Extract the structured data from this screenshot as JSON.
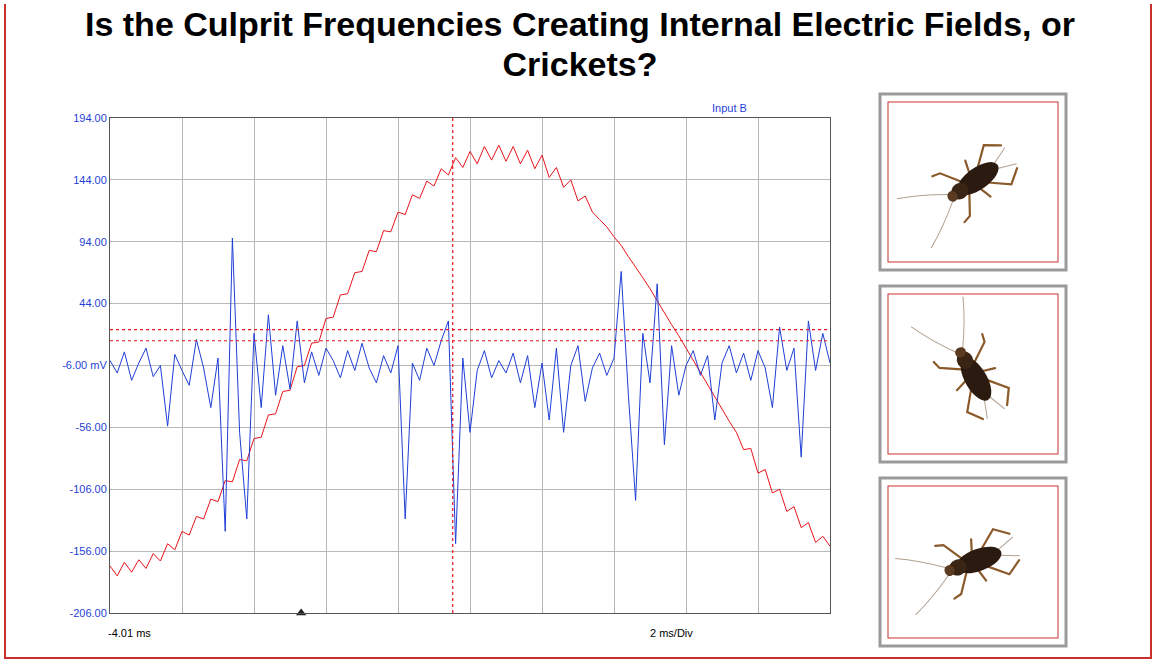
{
  "chart_data": {
    "type": "line",
    "title": "Is the Culprit Frequencies Creating Internal Electric Fields, or Crickets?",
    "input_label": "Input B",
    "x_start_label": "-4.01 ms",
    "x_scale_label": "2 ms/Div",
    "x": [
      -4.01,
      -3.81,
      -3.61,
      -3.41,
      -3.21,
      -3.01,
      -2.81,
      -2.61,
      -2.41,
      -2.21,
      -2.01,
      -1.81,
      -1.61,
      -1.41,
      -1.21,
      -1.01,
      -0.81,
      -0.61,
      -0.41,
      -0.21,
      -0.01,
      0.19,
      0.39,
      0.59,
      0.79,
      0.99,
      1.19,
      1.39,
      1.59,
      1.79,
      1.99,
      2.19,
      2.39,
      2.59,
      2.79,
      2.99,
      3.19,
      3.39,
      3.59,
      3.79,
      3.99,
      4.19,
      4.39,
      4.59,
      4.79,
      4.99,
      5.19,
      5.39,
      5.59,
      5.79,
      5.99,
      6.19,
      6.39,
      6.59,
      6.79,
      6.99,
      7.19,
      7.39,
      7.59,
      7.79,
      7.99,
      8.19,
      8.39,
      8.59,
      8.79,
      8.99,
      9.19,
      9.39,
      9.59,
      9.79,
      9.99,
      10.19,
      10.39,
      10.59,
      10.79,
      10.99,
      11.19,
      11.39,
      11.59,
      11.79,
      11.99,
      12.19,
      12.39,
      12.59,
      12.79,
      12.99,
      13.19,
      13.39,
      13.59,
      13.79,
      13.99,
      14.19,
      14.39,
      14.59,
      14.79,
      14.99,
      15.19,
      15.39,
      15.59,
      15.79,
      15.99
    ],
    "series": [
      {
        "color": "#e8141c",
        "values": [
          -168,
          -176,
          -165,
          -173,
          -163,
          -170,
          -158,
          -164,
          -150,
          -155,
          -140,
          -143,
          -128,
          -130,
          -114,
          -116,
          -99,
          -100,
          -82,
          -83,
          -65,
          -64,
          -46,
          -45,
          -27,
          -26,
          -7,
          -6,
          12,
          13,
          32,
          33,
          51,
          52,
          69,
          70,
          87,
          86,
          103,
          102,
          118,
          116,
          132,
          129,
          143,
          139,
          153,
          148,
          162,
          154,
          167,
          157,
          171,
          160,
          172,
          159,
          171,
          157,
          168,
          153,
          164,
          146,
          154,
          138,
          144,
          127,
          131,
          118,
          112,
          106,
          98,
          91,
          82,
          74,
          65,
          56,
          46,
          37,
          27,
          18,
          8,
          -2,
          -12,
          -22,
          -31,
          -41,
          -51,
          -60,
          -74,
          -73,
          -93,
          -90,
          -109,
          -106,
          -124,
          -120,
          -137,
          -133,
          -149,
          -144,
          -152
        ]
      },
      {
        "color": "#1f3fd6",
        "values": [
          -2,
          -12,
          5,
          -18,
          -4,
          8,
          -15,
          -6,
          -55,
          3,
          -10,
          -22,
          15,
          -8,
          -40,
          0,
          -140,
          97,
          -60,
          -130,
          20,
          -40,
          35,
          -30,
          10,
          -25,
          30,
          -20,
          5,
          -14,
          8,
          -2,
          -16,
          6,
          -10,
          12,
          -8,
          -20,
          2,
          -12,
          10,
          -130,
          -4,
          -18,
          8,
          -6,
          14,
          30,
          -150,
          0,
          -60,
          -10,
          6,
          -16,
          -2,
          -12,
          4,
          -20,
          2,
          -40,
          -4,
          -50,
          8,
          -60,
          -6,
          10,
          -35,
          -8,
          4,
          -14,
          0,
          70,
          -30,
          -115,
          20,
          -20,
          60,
          -70,
          10,
          -30,
          -6,
          6,
          -14,
          2,
          -50,
          -4,
          10,
          -12,
          4,
          -18,
          6,
          -8,
          -40,
          25,
          -10,
          8,
          -80,
          30,
          -10,
          20,
          -4
        ]
      }
    ],
    "xlim": [
      -4.01,
      15.99
    ],
    "xticks": [
      -4.01,
      -2.01,
      -0.01,
      1.99,
      3.99,
      5.99,
      7.99,
      9.99,
      11.99,
      13.99,
      15.99
    ],
    "ylim": [
      -206,
      194
    ],
    "yticks": [
      {
        "value": -206,
        "label": "-206.00"
      },
      {
        "value": -156,
        "label": "-156.00"
      },
      {
        "value": -106,
        "label": "-106.00"
      },
      {
        "value": -56,
        "label": "-56.00"
      },
      {
        "value": -6,
        "label": "-6.00 mV"
      },
      {
        "value": 44,
        "label": "44.00"
      },
      {
        "value": 94,
        "label": "94.00"
      },
      {
        "value": 144,
        "label": "144.00"
      },
      {
        "value": 194,
        "label": "194.00"
      }
    ],
    "cursor_x": 5.51,
    "cursor_y": [
      23,
      14
    ],
    "trigger_x": 1.3,
    "grid": true,
    "tick_labels": "y"
  }
}
